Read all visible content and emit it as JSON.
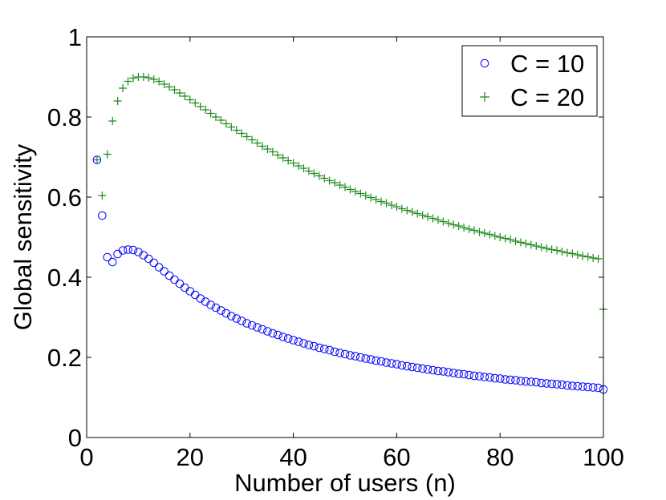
{
  "chart_data": {
    "type": "scatter",
    "title": "",
    "xlabel": "Number of users (n)",
    "ylabel": "Global sensitivity",
    "xlim": [
      0,
      100
    ],
    "ylim": [
      0,
      1
    ],
    "xticks": [
      0,
      20,
      40,
      60,
      80,
      100
    ],
    "yticks": [
      0,
      0.2,
      0.4,
      0.6,
      0.8,
      1
    ],
    "grid": false,
    "legend_position": "top-right",
    "series": [
      {
        "name": "C = 10",
        "label": "C = 10",
        "marker": "circle",
        "color": "#0000ff",
        "x": [
          2,
          3,
          4,
          5,
          6,
          7,
          8,
          9,
          10,
          11,
          12,
          13,
          14,
          15,
          16,
          17,
          18,
          19,
          20,
          21,
          22,
          23,
          24,
          25,
          26,
          27,
          28,
          29,
          30,
          31,
          32,
          33,
          34,
          35,
          36,
          37,
          38,
          39,
          40,
          41,
          42,
          43,
          44,
          45,
          46,
          47,
          48,
          49,
          50,
          51,
          52,
          53,
          54,
          55,
          56,
          57,
          58,
          59,
          60,
          61,
          62,
          63,
          64,
          65,
          66,
          67,
          68,
          69,
          70,
          71,
          72,
          73,
          74,
          75,
          76,
          77,
          78,
          79,
          80,
          81,
          82,
          83,
          84,
          85,
          86,
          87,
          88,
          89,
          90,
          91,
          92,
          93,
          94,
          95,
          96,
          97,
          98,
          99,
          100
        ],
        "y": [
          0.693,
          0.554,
          0.45,
          0.438,
          0.458,
          0.467,
          0.469,
          0.468,
          0.463,
          0.455,
          0.446,
          0.436,
          0.425,
          0.415,
          0.404,
          0.394,
          0.384,
          0.374,
          0.365,
          0.356,
          0.347,
          0.339,
          0.331,
          0.324,
          0.317,
          0.31,
          0.303,
          0.297,
          0.291,
          0.285,
          0.28,
          0.275,
          0.27,
          0.265,
          0.26,
          0.256,
          0.251,
          0.247,
          0.243,
          0.239,
          0.235,
          0.231,
          0.228,
          0.224,
          0.221,
          0.218,
          0.214,
          0.211,
          0.208,
          0.205,
          0.203,
          0.2,
          0.197,
          0.195,
          0.192,
          0.19,
          0.187,
          0.185,
          0.183,
          0.18,
          0.178,
          0.176,
          0.174,
          0.172,
          0.17,
          0.168,
          0.166,
          0.165,
          0.163,
          0.161,
          0.159,
          0.158,
          0.156,
          0.154,
          0.153,
          0.151,
          0.15,
          0.148,
          0.147,
          0.145,
          0.144,
          0.143,
          0.141,
          0.14,
          0.139,
          0.138,
          0.136,
          0.135,
          0.134,
          0.133,
          0.132,
          0.13,
          0.129,
          0.128,
          0.127,
          0.126,
          0.125,
          0.124,
          0.12
        ]
      },
      {
        "name": "C = 20",
        "label": "C = 20",
        "marker": "plus",
        "color": "#1a8a1a",
        "x": [
          2,
          3,
          4,
          5,
          6,
          7,
          8,
          9,
          10,
          11,
          12,
          13,
          14,
          15,
          16,
          17,
          18,
          19,
          20,
          21,
          22,
          23,
          24,
          25,
          26,
          27,
          28,
          29,
          30,
          31,
          32,
          33,
          34,
          35,
          36,
          37,
          38,
          39,
          40,
          41,
          42,
          43,
          44,
          45,
          46,
          47,
          48,
          49,
          50,
          51,
          52,
          53,
          54,
          55,
          56,
          57,
          58,
          59,
          60,
          61,
          62,
          63,
          64,
          65,
          66,
          67,
          68,
          69,
          70,
          71,
          72,
          73,
          74,
          75,
          76,
          77,
          78,
          79,
          80,
          81,
          82,
          83,
          84,
          85,
          86,
          87,
          88,
          89,
          90,
          91,
          92,
          93,
          94,
          95,
          96,
          97,
          98,
          99,
          100
        ],
        "y": [
          0.693,
          0.604,
          0.707,
          0.79,
          0.84,
          0.872,
          0.889,
          0.897,
          0.9,
          0.9,
          0.898,
          0.894,
          0.889,
          0.882,
          0.875,
          0.868,
          0.86,
          0.852,
          0.843,
          0.835,
          0.826,
          0.818,
          0.809,
          0.8,
          0.792,
          0.783,
          0.775,
          0.767,
          0.759,
          0.751,
          0.743,
          0.735,
          0.727,
          0.72,
          0.713,
          0.705,
          0.698,
          0.691,
          0.685,
          0.678,
          0.672,
          0.665,
          0.659,
          0.653,
          0.647,
          0.641,
          0.636,
          0.63,
          0.625,
          0.619,
          0.614,
          0.609,
          0.604,
          0.599,
          0.594,
          0.589,
          0.585,
          0.58,
          0.576,
          0.571,
          0.567,
          0.563,
          0.559,
          0.555,
          0.551,
          0.547,
          0.543,
          0.539,
          0.535,
          0.531,
          0.528,
          0.524,
          0.52,
          0.517,
          0.513,
          0.51,
          0.507,
          0.503,
          0.5,
          0.497,
          0.494,
          0.49,
          0.487,
          0.484,
          0.481,
          0.478,
          0.475,
          0.472,
          0.469,
          0.467,
          0.464,
          0.461,
          0.459,
          0.456,
          0.453,
          0.451,
          0.448,
          0.446,
          0.32
        ]
      }
    ]
  }
}
